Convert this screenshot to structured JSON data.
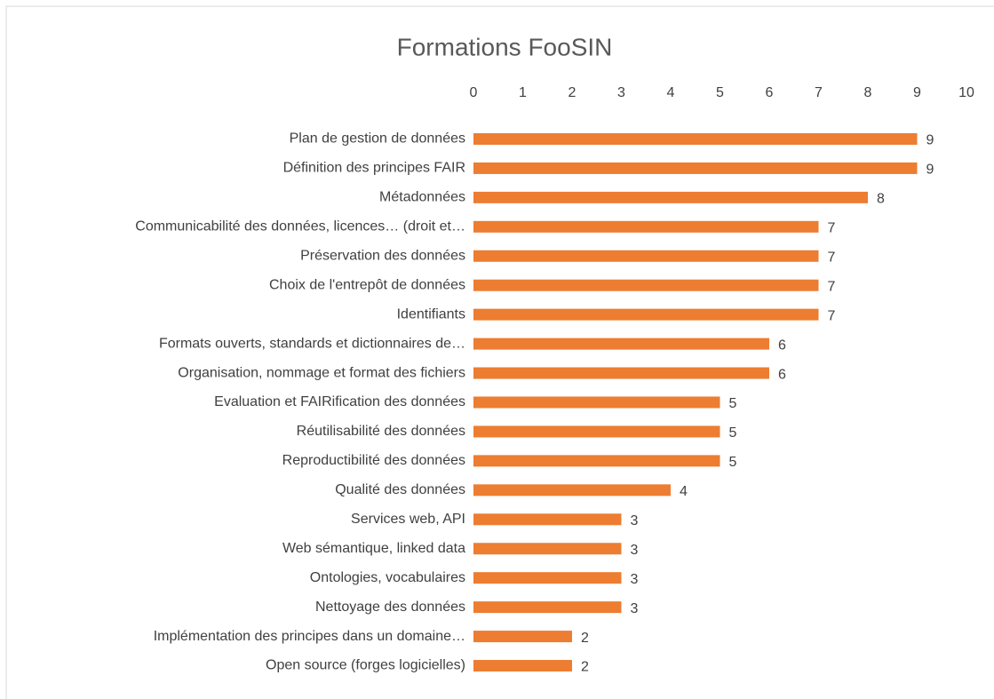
{
  "chart_data": {
    "type": "bar",
    "title": "Formations FooSIN",
    "categories": [
      "Plan de gestion de données",
      "Définition des principes FAIR",
      "Métadonnées",
      "Communicabilité des données, licences… (droit et…",
      "Préservation des données",
      "Choix de l'entrepôt de données",
      "Identifiants",
      "Formats ouverts, standards et dictionnaires de…",
      "Organisation, nommage et format des fichiers",
      "Evaluation et FAIRification des données",
      "Réutilisabilité des données",
      "Reproductibilité des données",
      "Qualité des données",
      "Services web, API",
      "Web sémantique, linked data",
      "Ontologies, vocabulaires",
      "Nettoyage des données",
      "Implémentation des principes dans un domaine…",
      "Open source (forges logicielles)"
    ],
    "values": [
      9,
      9,
      8,
      7,
      7,
      7,
      7,
      6,
      6,
      5,
      5,
      5,
      4,
      3,
      3,
      3,
      3,
      2,
      2
    ],
    "color": "#ed7d31",
    "xlim": [
      0,
      10
    ],
    "xticks": [
      0,
      1,
      2,
      3,
      4,
      5,
      6,
      7,
      8,
      9,
      10
    ],
    "grid": false
  }
}
